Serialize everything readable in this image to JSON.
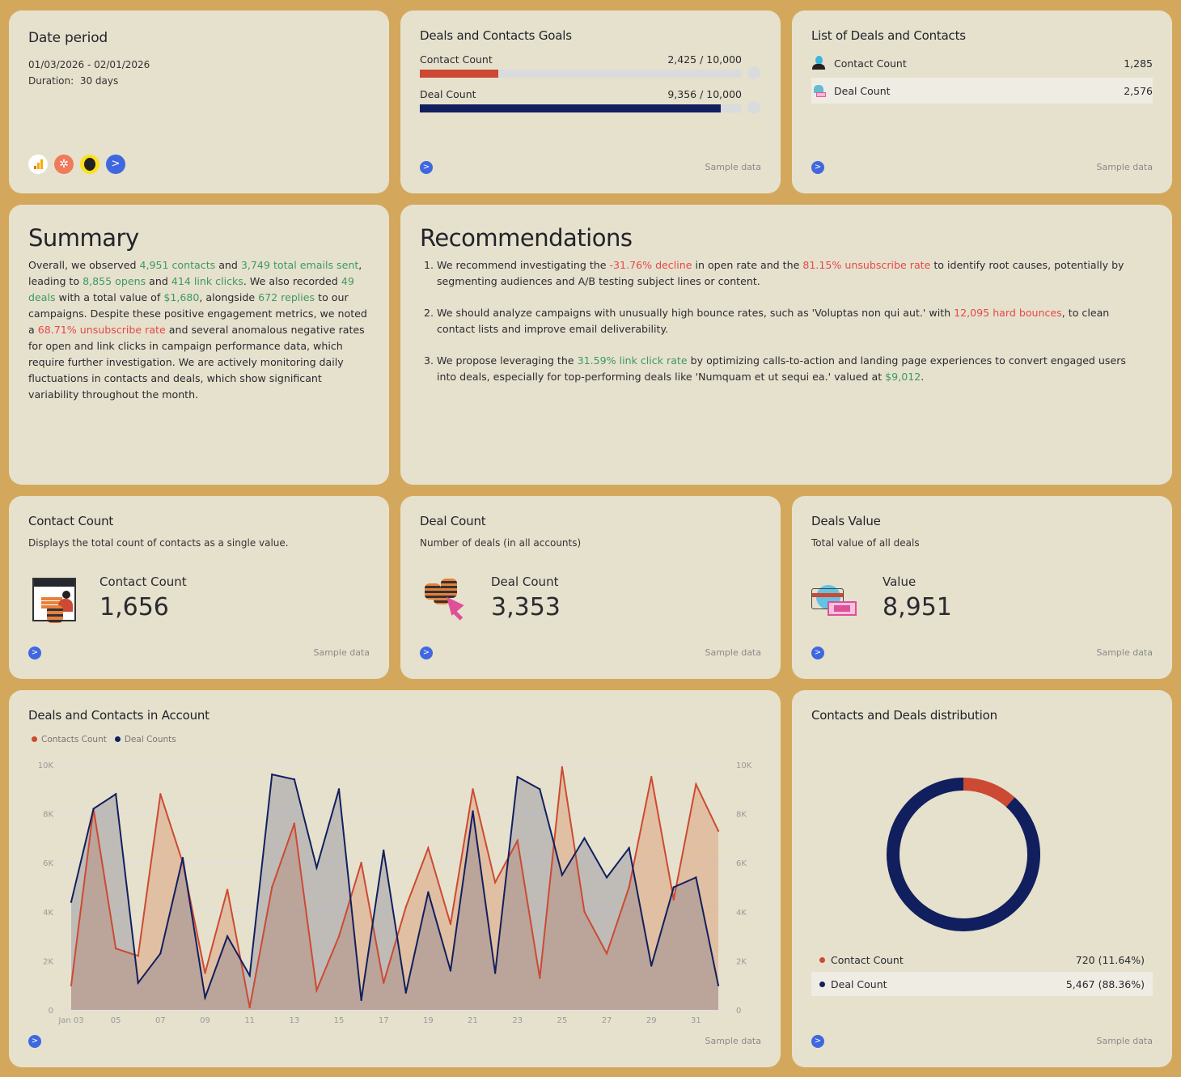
{
  "date_period": {
    "title": "Date period",
    "range": "01/03/2026 - 02/01/2026",
    "duration_label": "Duration:",
    "duration": "30 days",
    "integrations": [
      "google-analytics-icon",
      "hubspot-icon",
      "mailchimp-icon",
      "activecampaign-icon"
    ]
  },
  "goals": {
    "title": "Deals and Contacts Goals",
    "items": [
      {
        "label": "Contact Count",
        "value": "2,425 / 10,000",
        "progress": 0.2425,
        "color": "#cc4a33"
      },
      {
        "label": "Deal Count",
        "value": "9,356 / 10,000",
        "progress": 0.9356,
        "color": "#111f5e"
      }
    ],
    "sample": "Sample data"
  },
  "list": {
    "title": "List of Deals and Contacts",
    "items": [
      {
        "label": "Contact Count",
        "value": "1,285"
      },
      {
        "label": "Deal Count",
        "value": "2,576"
      }
    ],
    "sample": "Sample data"
  },
  "summary": {
    "title": "Summary",
    "segments": [
      {
        "t": "Overall, we observed ",
        "c": ""
      },
      {
        "t": "4,951 contacts",
        "c": "g"
      },
      {
        "t": " and ",
        "c": ""
      },
      {
        "t": "3,749 total emails sent",
        "c": "g"
      },
      {
        "t": ", leading to ",
        "c": ""
      },
      {
        "t": "8,855 opens",
        "c": "g"
      },
      {
        "t": " and ",
        "c": ""
      },
      {
        "t": "414 link clicks",
        "c": "g"
      },
      {
        "t": ". We also recorded ",
        "c": ""
      },
      {
        "t": "49 deals",
        "c": "g"
      },
      {
        "t": " with a total value of ",
        "c": ""
      },
      {
        "t": "$1,680",
        "c": "g"
      },
      {
        "t": ", alongside ",
        "c": ""
      },
      {
        "t": "672 replies",
        "c": "g"
      },
      {
        "t": " to our campaigns. Despite these positive engagement metrics, we noted a ",
        "c": ""
      },
      {
        "t": "68.71% unsubscribe rate",
        "c": "r"
      },
      {
        "t": " and several anomalous negative rates for open and link clicks in campaign performance data, which require further investigation. We are actively monitoring daily fluctuations in contacts and deals, which show significant variability throughout the month.",
        "c": ""
      }
    ]
  },
  "recommendations": {
    "title": "Recommendations",
    "items": [
      [
        {
          "t": "We recommend investigating the ",
          "c": ""
        },
        {
          "t": "-31.76% decline",
          "c": "r"
        },
        {
          "t": " in open rate and the ",
          "c": ""
        },
        {
          "t": "81.15% unsubscribe rate",
          "c": "r"
        },
        {
          "t": " to identify root causes, potentially by segmenting audiences and A/B testing subject lines or content.",
          "c": ""
        }
      ],
      [
        {
          "t": "We should analyze campaigns with unusually high bounce rates, such as 'Voluptas non qui aut.' with ",
          "c": ""
        },
        {
          "t": "12,095 hard bounces",
          "c": "r"
        },
        {
          "t": ", to clean contact lists and improve email deliverability.",
          "c": ""
        }
      ],
      [
        {
          "t": "We propose leveraging the ",
          "c": ""
        },
        {
          "t": "31.59% link click rate",
          "c": "g"
        },
        {
          "t": " by optimizing calls-to-action and landing page experiences to convert engaged users into deals, especially for top-performing deals like 'Numquam et ut sequi ea.' valued at ",
          "c": ""
        },
        {
          "t": "$9,012",
          "c": "g"
        },
        {
          "t": ".",
          "c": ""
        }
      ]
    ]
  },
  "contact_count": {
    "title": "Contact Count",
    "description": "Displays the total count of contacts as a single value.",
    "label": "Contact Count",
    "value": "1,656",
    "sample": "Sample data"
  },
  "deal_count": {
    "title": "Deal Count",
    "description": "Number of deals (in all accounts)",
    "label": "Deal Count",
    "value": "3,353",
    "sample": "Sample data"
  },
  "deals_value": {
    "title": "Deals Value",
    "description": "Total value of all deals",
    "label": "Value",
    "value": "8,951",
    "sample": "Sample data"
  },
  "chart_data": [
    {
      "type": "area",
      "title": "Deals and Contacts in Account",
      "legend_position": "top-left",
      "grid": true,
      "x": [
        "Jan 03",
        "04",
        "05",
        "06",
        "07",
        "08",
        "09",
        "10",
        "11",
        "12",
        "13",
        "14",
        "15",
        "16",
        "17",
        "18",
        "19",
        "20",
        "21",
        "22",
        "23",
        "24",
        "25",
        "26",
        "27",
        "28",
        "29",
        "30",
        "31",
        "Feb 01"
      ],
      "x_tick_labels": [
        "Jan 03",
        "05",
        "07",
        "09",
        "11",
        "13",
        "15",
        "17",
        "19",
        "21",
        "23",
        "25",
        "27",
        "29",
        "31"
      ],
      "y_tick_labels": [
        "0",
        "2K",
        "4K",
        "6K",
        "8K",
        "10K"
      ],
      "ylim": [
        0,
        10000
      ],
      "series": [
        {
          "name": "Contacts Count",
          "color": "#cc4a33",
          "values": [
            1000,
            8200,
            2500,
            2200,
            8800,
            6000,
            1500,
            4900,
            100,
            5000,
            7600,
            800,
            3000,
            6000,
            1100,
            4200,
            6600,
            3500,
            9000,
            5200,
            6900,
            1300,
            9900,
            4000,
            2300,
            5000,
            9500,
            4500,
            9200,
            7300
          ]
        },
        {
          "name": "Deal Counts",
          "color": "#111f5e",
          "values": [
            4400,
            8200,
            8800,
            1100,
            2300,
            6200,
            500,
            3000,
            1400,
            9600,
            9400,
            5800,
            9000,
            400,
            6500,
            700,
            4800,
            1600,
            8100,
            1500,
            9500,
            9000,
            5500,
            7000,
            5400,
            6600,
            1800,
            5000,
            5400,
            1000
          ]
        }
      ],
      "sample": "Sample data"
    },
    {
      "type": "pie",
      "title": "Contacts and Deals distribution",
      "slices": [
        {
          "label": "Contact Count",
          "value": 720,
          "display": "720 (11.64%)",
          "percent": 11.64,
          "color": "#cc4a33"
        },
        {
          "label": "Deal Count",
          "value": 5467,
          "display": "5,467 (88.36%)",
          "percent": 88.36,
          "color": "#111f5e"
        }
      ],
      "sample": "Sample data"
    }
  ]
}
